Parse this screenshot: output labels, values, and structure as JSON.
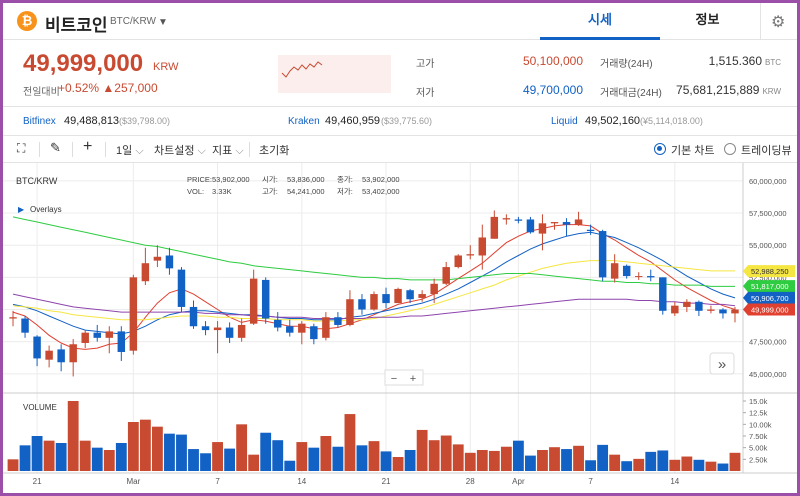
{
  "header": {
    "coin_icon": "bitcoin-icon",
    "coin_glyph": "₿",
    "coin_name": "비트코인",
    "coin_symbol": "BTC/KRW",
    "dropdown_icon": "chevron-down-icon",
    "dropdown_glyph": "▼",
    "tabs": [
      {
        "label": "시세",
        "active": true
      },
      {
        "label": "정보",
        "active": false
      }
    ],
    "settings_icon": "gear-icon",
    "settings_glyph": "⚙",
    "accent": "#1261c4"
  },
  "ticker": {
    "price": "49,999,000",
    "unit": "KRW",
    "change_label": "전일대비",
    "change_pct": "+0.52%",
    "change_arrow": "▲",
    "change_amount": "257,000",
    "color_up": "#c84a31",
    "color_down": "#1261c4",
    "stats": [
      {
        "label": "고가",
        "value": "50,100,000",
        "color": "#c84a31"
      },
      {
        "label": "저가",
        "value": "49,700,000",
        "color": "#1261c4"
      },
      {
        "label": "거래량(24H)",
        "value": "1,515.360",
        "unit": "BTC"
      },
      {
        "label": "거래대금(24H)",
        "value": "75,681,215,889",
        "unit": "KRW"
      }
    ]
  },
  "exchanges": [
    {
      "name": "Bitfinex",
      "value": "49,488,813",
      "usd": "($39,798.00)"
    },
    {
      "name": "Kraken",
      "value": "49,460,959",
      "usd": "($39,775.60)"
    },
    {
      "name": "Liquid",
      "value": "49,502,160",
      "usd": "(¥5,114,018.00)"
    }
  ],
  "toolbar": {
    "fullscreen_icon": "fullscreen-icon",
    "fullscreen_glyph": "⛶",
    "pencil_icon": "pencil-icon",
    "pencil_glyph": "✎",
    "crosshair_icon": "crosshair-icon",
    "crosshair_glyph": "+",
    "interval": "1일",
    "chart_settings": "차트설정",
    "indicators": "지표",
    "reset": "초기화",
    "basic_chart": "기본 차트",
    "tradingview": "트레이딩뷰",
    "dropdown_glyph": "⌵"
  },
  "chart": {
    "symbol": "BTC/KRW",
    "overlays": "Overlays",
    "overlays_glyph": "▶",
    "info": {
      "price_label": "PRICE:",
      "price": "53,902,000",
      "vol_label": "VOL:",
      "vol": "3.33K",
      "open_label": "시가:",
      "open": "53,836,000",
      "high_label": "고가:",
      "high": "54,241,000",
      "close_label": "종가:",
      "close": "53,902,000",
      "low_label": "저가:",
      "low": "53,402,000"
    },
    "zoom_minus": "−",
    "zoom_plus": "+",
    "scroll_glyph": "»",
    "volume_label": "VOLUME",
    "price_badges": [
      {
        "text": "52,988,250",
        "color": "#f5e642",
        "text_color": "#333"
      },
      {
        "text": "51,817,000",
        "color": "#2ecc40",
        "text_color": "#fff"
      },
      {
        "text": "50,906,700",
        "color": "#1261c4",
        "text_color": "#fff"
      },
      {
        "text": "49,999,000",
        "color": "#e04030",
        "text_color": "#fff"
      }
    ]
  },
  "chart_data": {
    "type": "candlestick",
    "y_ticks": [
      "60,000,000",
      "57,500,000",
      "55,000,000",
      "52,500,000",
      "50,000,000",
      "47,500,000",
      "45,000,000"
    ],
    "y_tick_values": [
      60000000,
      57500000,
      55000000,
      52500000,
      50000000,
      47500000,
      45000000
    ],
    "ylim": [
      43900000,
      61000000
    ],
    "x_labels": [
      {
        "label": "21",
        "i": 2
      },
      {
        "label": "Mar",
        "i": 10
      },
      {
        "label": "7",
        "i": 17
      },
      {
        "label": "14",
        "i": 24
      },
      {
        "label": "21",
        "i": 31
      },
      {
        "label": "28",
        "i": 38
      },
      {
        "label": "Apr",
        "i": 42
      },
      {
        "label": "7",
        "i": 48
      },
      {
        "label": "14",
        "i": 55
      }
    ],
    "candles": [
      {
        "o": 49.3,
        "c": 49.4,
        "h": 49.9,
        "l": 48.7
      },
      {
        "o": 49.3,
        "c": 48.2,
        "h": 49.5,
        "l": 47.8
      },
      {
        "o": 47.9,
        "c": 46.2,
        "h": 48.0,
        "l": 45.6
      },
      {
        "o": 46.1,
        "c": 46.8,
        "h": 47.2,
        "l": 45.5
      },
      {
        "o": 46.9,
        "c": 45.9,
        "h": 47.3,
        "l": 45.2
      },
      {
        "o": 45.9,
        "c": 47.3,
        "h": 47.7,
        "l": 44.8
      },
      {
        "o": 47.4,
        "c": 48.2,
        "h": 48.4,
        "l": 47.0
      },
      {
        "o": 48.2,
        "c": 47.8,
        "h": 48.8,
        "l": 47.5
      },
      {
        "o": 47.8,
        "c": 48.3,
        "h": 48.7,
        "l": 46.6
      },
      {
        "o": 48.3,
        "c": 46.7,
        "h": 48.7,
        "l": 46.0
      },
      {
        "o": 46.8,
        "c": 52.5,
        "h": 52.7,
        "l": 46.5
      },
      {
        "o": 52.2,
        "c": 53.6,
        "h": 54.8,
        "l": 51.9
      },
      {
        "o": 53.8,
        "c": 54.1,
        "h": 55.0,
        "l": 53.3
      },
      {
        "o": 54.2,
        "c": 53.2,
        "h": 54.8,
        "l": 52.7
      },
      {
        "o": 53.1,
        "c": 50.2,
        "h": 53.3,
        "l": 49.8
      },
      {
        "o": 50.2,
        "c": 48.7,
        "h": 50.7,
        "l": 48.5
      },
      {
        "o": 48.7,
        "c": 48.4,
        "h": 49.1,
        "l": 48.0
      },
      {
        "o": 48.4,
        "c": 48.6,
        "h": 49.1,
        "l": 46.6
      },
      {
        "o": 48.6,
        "c": 47.8,
        "h": 49.0,
        "l": 47.4
      },
      {
        "o": 47.8,
        "c": 48.8,
        "h": 49.3,
        "l": 47.5
      },
      {
        "o": 48.9,
        "c": 52.4,
        "h": 53.1,
        "l": 48.8
      },
      {
        "o": 52.3,
        "c": 49.3,
        "h": 52.5,
        "l": 48.9
      },
      {
        "o": 49.2,
        "c": 48.6,
        "h": 49.8,
        "l": 48.3
      },
      {
        "o": 48.7,
        "c": 48.2,
        "h": 49.2,
        "l": 47.9
      },
      {
        "o": 48.2,
        "c": 48.9,
        "h": 49.1,
        "l": 47.3
      },
      {
        "o": 48.7,
        "c": 47.7,
        "h": 48.9,
        "l": 47.3
      },
      {
        "o": 47.8,
        "c": 49.4,
        "h": 49.8,
        "l": 47.6
      },
      {
        "o": 49.4,
        "c": 48.8,
        "h": 49.8,
        "l": 48.6
      },
      {
        "o": 48.8,
        "c": 50.8,
        "h": 51.5,
        "l": 48.7
      },
      {
        "o": 50.8,
        "c": 50.0,
        "h": 51.2,
        "l": 49.6
      },
      {
        "o": 50.0,
        "c": 51.2,
        "h": 51.4,
        "l": 49.9
      },
      {
        "o": 51.2,
        "c": 50.5,
        "h": 51.7,
        "l": 50.1
      },
      {
        "o": 50.5,
        "c": 51.6,
        "h": 51.7,
        "l": 50.5
      },
      {
        "o": 51.5,
        "c": 50.8,
        "h": 51.6,
        "l": 50.5
      },
      {
        "o": 50.9,
        "c": 51.2,
        "h": 51.5,
        "l": 50.6
      },
      {
        "o": 51.2,
        "c": 52.0,
        "h": 52.4,
        "l": 50.5
      },
      {
        "o": 52.0,
        "c": 53.3,
        "h": 53.7,
        "l": 51.9
      },
      {
        "o": 53.3,
        "c": 54.2,
        "h": 54.3,
        "l": 53.2
      },
      {
        "o": 54.2,
        "c": 54.3,
        "h": 55.0,
        "l": 53.9
      },
      {
        "o": 54.2,
        "c": 55.6,
        "h": 56.6,
        "l": 53.1
      },
      {
        "o": 55.5,
        "c": 57.2,
        "h": 57.7,
        "l": 55.5
      },
      {
        "o": 57.0,
        "c": 57.1,
        "h": 57.4,
        "l": 56.6
      },
      {
        "o": 57.0,
        "c": 56.9,
        "h": 57.2,
        "l": 56.7
      },
      {
        "o": 57.0,
        "c": 56.0,
        "h": 57.2,
        "l": 55.9
      },
      {
        "o": 55.9,
        "c": 56.7,
        "h": 57.4,
        "l": 54.6
      },
      {
        "o": 56.7,
        "c": 56.8,
        "h": 56.8,
        "l": 56.2
      },
      {
        "o": 56.8,
        "c": 56.6,
        "h": 57.1,
        "l": 55.7
      },
      {
        "o": 56.6,
        "c": 57.0,
        "h": 57.6,
        "l": 56.5
      },
      {
        "o": 56.2,
        "c": 56.1,
        "h": 56.6,
        "l": 55.8
      },
      {
        "o": 56.1,
        "c": 52.5,
        "h": 56.2,
        "l": 52.2
      },
      {
        "o": 52.4,
        "c": 53.6,
        "h": 54.3,
        "l": 52.1
      },
      {
        "o": 53.4,
        "c": 52.6,
        "h": 53.5,
        "l": 52.4
      },
      {
        "o": 52.6,
        "c": 52.6,
        "h": 52.9,
        "l": 52.3
      },
      {
        "o": 52.6,
        "c": 52.5,
        "h": 53.1,
        "l": 52.2
      },
      {
        "o": 52.5,
        "c": 49.9,
        "h": 52.5,
        "l": 49.6
      },
      {
        "o": 49.7,
        "c": 50.3,
        "h": 50.6,
        "l": 49.5
      },
      {
        "o": 50.2,
        "c": 50.6,
        "h": 50.8,
        "l": 49.8
      },
      {
        "o": 50.6,
        "c": 49.9,
        "h": 50.7,
        "l": 49.5
      },
      {
        "o": 49.9,
        "c": 50.0,
        "h": 50.3,
        "l": 49.7
      },
      {
        "o": 50.0,
        "c": 49.7,
        "h": 50.1,
        "l": 49.3
      },
      {
        "o": 49.7,
        "c": 50.0,
        "h": 50.2,
        "l": 49.0
      }
    ],
    "volume_ticks": [
      "15.0k",
      "12.5k",
      "10.00k",
      "7.50k",
      "5.00k",
      "2.50k"
    ],
    "volume_tick_values": [
      15000,
      12500,
      10000,
      7500,
      5000,
      2500
    ],
    "volume": [
      2.5,
      5.5,
      7.5,
      6.5,
      6.0,
      15.0,
      6.5,
      5.0,
      4.5,
      6.0,
      10.5,
      11.0,
      9.5,
      8.0,
      7.8,
      4.7,
      3.8,
      6.2,
      4.8,
      10.0,
      3.5,
      8.2,
      6.6,
      2.2,
      6.2,
      5.0,
      7.5,
      5.2,
      12.2,
      5.5,
      6.4,
      4.2,
      3.0,
      4.5,
      8.8,
      6.6,
      7.6,
      5.7,
      3.9,
      4.5,
      4.3,
      5.2,
      6.5,
      3.3,
      4.5,
      5.1,
      4.7,
      5.4,
      2.3,
      5.6,
      3.5,
      2.1,
      2.6,
      4.1,
      4.4,
      2.4,
      3.1,
      2.4,
      2.0,
      1.6,
      3.9
    ],
    "ma_series": [
      {
        "name": "",
        "color": "#e04030",
        "values": [
          49.8,
          49.5,
          48.8,
          48.0,
          47.4,
          47.0,
          46.9,
          47.0,
          47.3,
          47.4,
          48.2,
          49.4,
          50.5,
          51.3,
          51.6,
          51.2,
          50.6,
          50.0,
          49.4,
          49.0,
          49.2,
          49.1,
          48.9,
          48.7,
          48.7,
          48.5,
          48.5,
          48.6,
          48.9,
          49.2,
          49.6,
          50.0,
          50.4,
          50.6,
          50.8,
          51.2,
          51.8,
          52.4,
          53.0,
          53.6,
          54.4,
          55.2,
          55.7,
          56.1,
          56.3,
          56.5,
          56.6,
          56.6,
          56.5,
          55.9,
          55.4,
          54.8,
          54.2,
          53.7,
          53.0,
          52.3,
          51.7,
          51.2,
          50.7,
          50.3,
          50.0
        ]
      },
      {
        "name": "",
        "color": "#1261c4",
        "values": [
          50.4,
          50.2,
          49.9,
          49.5,
          49.1,
          48.7,
          48.4,
          48.3,
          48.2,
          48.1,
          48.3,
          48.7,
          49.2,
          49.6,
          49.8,
          49.9,
          49.9,
          49.8,
          49.7,
          49.6,
          49.6,
          49.5,
          49.4,
          49.3,
          49.3,
          49.2,
          49.2,
          49.2,
          49.4,
          49.5,
          49.7,
          49.9,
          50.1,
          50.3,
          50.5,
          50.8,
          51.2,
          51.6,
          52.1,
          52.6,
          53.1,
          53.7,
          54.2,
          54.7,
          55.1,
          55.4,
          55.7,
          55.9,
          56.0,
          55.8,
          55.6,
          55.2,
          54.8,
          54.3,
          53.8,
          53.2,
          52.6,
          52.1,
          51.6,
          51.2,
          50.9
        ]
      },
      {
        "name": "",
        "color": "#f5e642",
        "values": [
          50.3,
          50.2,
          50.1,
          49.9,
          49.8,
          49.6,
          49.5,
          49.4,
          49.3,
          49.2,
          49.2,
          49.2,
          49.3,
          49.4,
          49.5,
          49.5,
          49.5,
          49.4,
          49.4,
          49.3,
          49.3,
          49.3,
          49.2,
          49.2,
          49.2,
          49.1,
          49.1,
          49.1,
          49.2,
          49.2,
          49.3,
          49.5,
          49.7,
          49.9,
          50.1,
          50.4,
          50.7,
          51.0,
          51.3,
          51.6,
          51.9,
          52.3,
          52.6,
          52.9,
          53.2,
          53.4,
          53.6,
          53.7,
          53.8,
          53.8,
          53.8,
          53.7,
          53.6,
          53.5,
          53.4,
          53.3,
          53.2,
          53.1,
          53.0,
          53.0,
          53.0
        ]
      },
      {
        "name": "",
        "color": "#2ecc40",
        "values": [
          57.2,
          57.0,
          56.8,
          56.6,
          56.4,
          56.2,
          56.0,
          55.8,
          55.6,
          55.4,
          55.2,
          55.0,
          54.9,
          54.7,
          54.5,
          54.3,
          54.1,
          53.9,
          53.7,
          53.6,
          53.4,
          53.3,
          53.2,
          53.1,
          53.0,
          52.9,
          52.8,
          52.7,
          52.6,
          52.5,
          52.5,
          52.4,
          52.4,
          52.3,
          52.3,
          52.3,
          52.3,
          52.4,
          52.5,
          52.6,
          52.7,
          52.8,
          52.8,
          52.8,
          52.7,
          52.6,
          52.5,
          52.4,
          52.3,
          52.2,
          52.2,
          52.1,
          52.1,
          52.0,
          52.0,
          51.9,
          51.9,
          51.9,
          51.8,
          51.8,
          51.8
        ]
      },
      {
        "name": "",
        "color": "#8e44ad",
        "values": [
          51.2,
          51.0,
          50.8,
          50.6,
          50.4,
          50.2,
          50.1,
          50.0,
          49.9,
          49.8,
          49.8,
          49.8,
          49.8,
          49.8,
          49.8,
          49.8,
          49.7,
          49.7,
          49.6,
          49.6,
          49.5,
          49.5,
          49.4,
          49.4,
          49.4,
          49.3,
          49.3,
          49.3,
          49.3,
          49.3,
          49.4,
          49.4,
          49.4,
          49.5,
          49.5,
          49.6,
          49.7,
          49.8,
          49.9,
          50.0,
          50.1,
          50.2,
          50.3,
          50.4,
          50.5,
          50.6,
          50.7,
          50.8,
          50.8,
          50.8,
          50.8,
          50.8,
          50.7,
          50.7,
          50.6,
          50.6,
          50.5,
          50.5,
          50.4,
          50.4,
          50.3
        ]
      }
    ]
  }
}
